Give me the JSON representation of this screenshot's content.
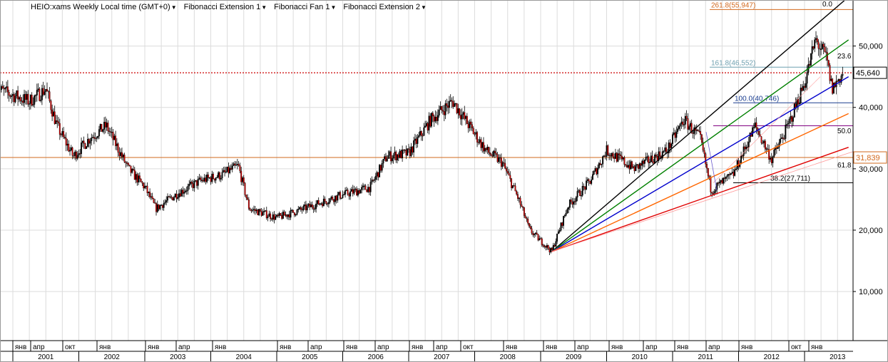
{
  "toolbar": {
    "icon_name": "eq-icon",
    "items": [
      "HEIO:xams Weekly Local time (GMT+0)",
      "Fibonacci Extension 1",
      "Fibonacci Fan 1",
      "Fibonacci Extension 2"
    ]
  },
  "colors": {
    "bull": "#000000",
    "bear": "#cc0000",
    "grid": "#dcdcdc",
    "price_line": "#cc0000",
    "hline": "#d2691e"
  },
  "chart_data": {
    "type": "candlestick",
    "y_axis": {
      "ticks": [
        "10,000",
        "20,000",
        "30,000",
        "40,000",
        "50,000"
      ],
      "ylim": [
        2000,
        57500
      ],
      "side": "right"
    },
    "x_axis": {
      "month_labels": [
        "янв",
        "апр",
        "окт",
        "янв",
        "янв",
        "апр",
        "янв",
        "янв",
        "апр",
        "янв",
        "апр",
        "янв",
        "апр",
        "окт",
        "янв",
        "янв",
        "апр",
        "янв",
        "апр",
        "янв",
        "апр",
        "янв",
        "окт",
        "янв"
      ],
      "year_labels": [
        "2001",
        "2002",
        "2003",
        "2004",
        "2005",
        "2006",
        "2007",
        "2008",
        "2009",
        "2010",
        "2011",
        "2012",
        "2013"
      ]
    },
    "current_price": {
      "label": "45,640",
      "value": 45640
    },
    "horizontal_level": {
      "label": "31,839",
      "value": 31839
    },
    "price_path": [
      [
        "2000-10",
        43000
      ],
      [
        "2001-01",
        42000
      ],
      [
        "2001-04",
        41000
      ],
      [
        "2001-07",
        43000
      ],
      [
        "2001-09",
        37000
      ],
      [
        "2001-12",
        32000
      ],
      [
        "2002-03",
        35000
      ],
      [
        "2002-06",
        37000
      ],
      [
        "2002-10",
        30000
      ],
      [
        "2003-01",
        27000
      ],
      [
        "2003-03",
        23500
      ],
      [
        "2003-07",
        26000
      ],
      [
        "2003-11",
        28000
      ],
      [
        "2004-03",
        29000
      ],
      [
        "2004-06",
        30500
      ],
      [
        "2004-08",
        23500
      ],
      [
        "2005-01",
        22000
      ],
      [
        "2005-06",
        23500
      ],
      [
        "2005-12",
        25500
      ],
      [
        "2006-06",
        27000
      ],
      [
        "2006-09",
        32000
      ],
      [
        "2007-01",
        32500
      ],
      [
        "2007-05",
        38000
      ],
      [
        "2007-09",
        41000
      ],
      [
        "2007-12",
        37000
      ],
      [
        "2008-03",
        33000
      ],
      [
        "2008-06",
        31000
      ],
      [
        "2008-09",
        25000
      ],
      [
        "2008-11",
        20000
      ],
      [
        "2009-03",
        16500
      ],
      [
        "2009-06",
        24000
      ],
      [
        "2009-10",
        28000
      ],
      [
        "2010-01",
        33000
      ],
      [
        "2010-06",
        30000
      ],
      [
        "2010-12",
        33000
      ],
      [
        "2011-03",
        38000
      ],
      [
        "2011-06",
        35000
      ],
      [
        "2011-08",
        26500
      ],
      [
        "2011-12",
        29000
      ],
      [
        "2012-04",
        37000
      ],
      [
        "2012-07",
        31500
      ],
      [
        "2012-10",
        37000
      ],
      [
        "2013-01",
        44000
      ],
      [
        "2013-03",
        51000
      ],
      [
        "2013-05",
        48000
      ],
      [
        "2013-06",
        43000
      ],
      [
        "2013-08",
        45640
      ]
    ],
    "fib_extension_levels": [
      {
        "label": "261.8(55,947)",
        "value": 55947
      },
      {
        "label": "161.8(46,552)",
        "value": 46552
      },
      {
        "label": "100.0(40,746)",
        "value": 40746
      },
      {
        "label": "38.2(27,711)",
        "value": 27711
      }
    ],
    "fib_fan": {
      "origin": [
        "2009-03",
        16500
      ],
      "rays": [
        {
          "label": "0.0",
          "color": "#000000",
          "through": [
            "2013-09",
            58000
          ]
        },
        {
          "label": "23.6",
          "color": "#008000",
          "through": [
            "2013-09",
            51000
          ]
        },
        {
          "label": "",
          "color": "#0000cc",
          "through": [
            "2013-09",
            45000
          ]
        },
        {
          "label": "50.0",
          "color": "#ff6600",
          "through": [
            "2013-09",
            39000
          ]
        },
        {
          "label": "61.8",
          "color": "#e00000",
          "through": [
            "2013-09",
            33500
          ]
        }
      ]
    }
  }
}
